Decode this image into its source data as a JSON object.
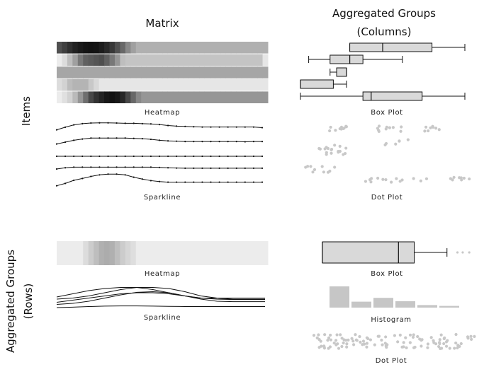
{
  "titles": {
    "matrix": "Matrix",
    "aggregated_columns_line1": "Aggregated Groups",
    "aggregated_columns_line2": "(Columns)",
    "items": "Items",
    "aggregated_rows_line1": "Aggregated Groups",
    "aggregated_rows_line2": "(Rows)"
  },
  "labels": {
    "heatmap": "Heatmap",
    "sparkline": "Sparkline",
    "box_plot": "Box Plot",
    "dot_plot": "Dot Plot",
    "histogram": "Histogram"
  },
  "colors": {
    "dot": "#c8c8c8",
    "bar": "#c6c6c6",
    "box_fill": "#d9d9d9",
    "line": "#111111"
  },
  "heatmap_rows": [
    [
      80,
      64,
      48,
      34,
      26,
      20,
      18,
      20,
      28,
      40,
      56,
      80,
      104,
      136,
      160,
      176,
      176,
      176,
      176,
      176,
      176,
      176,
      176,
      176,
      176,
      176,
      176,
      176,
      176,
      176,
      176,
      176,
      176,
      176,
      176,
      176,
      176,
      176,
      176,
      176
    ],
    [
      236,
      220,
      190,
      160,
      120,
      96,
      90,
      84,
      78,
      96,
      120,
      150,
      190,
      196,
      196,
      196,
      196,
      196,
      196,
      196,
      196,
      196,
      196,
      196,
      196,
      196,
      196,
      196,
      196,
      196,
      196,
      196,
      196,
      196,
      196,
      196,
      196,
      196,
      196,
      230
    ],
    [
      166,
      166,
      166,
      166,
      166,
      166,
      166,
      166,
      166,
      166,
      166,
      166,
      166,
      166,
      166,
      166,
      166,
      166,
      166,
      166,
      166,
      166,
      166,
      166,
      166,
      166,
      166,
      166,
      166,
      166,
      166,
      166,
      166,
      166,
      166,
      166,
      166,
      166,
      166,
      166
    ],
    [
      220,
      210,
      188,
      180,
      180,
      180,
      200,
      216,
      230,
      230,
      230,
      230,
      230,
      230,
      230,
      230,
      230,
      230,
      230,
      230,
      230,
      230,
      230,
      230,
      230,
      230,
      230,
      230,
      230,
      230,
      230,
      230,
      230,
      230,
      230,
      230,
      230,
      230,
      230,
      230
    ],
    [
      236,
      224,
      210,
      186,
      150,
      110,
      72,
      50,
      36,
      24,
      18,
      24,
      40,
      72,
      104,
      136,
      150,
      150,
      150,
      150,
      150,
      150,
      150,
      150,
      150,
      150,
      150,
      150,
      150,
      150,
      150,
      150,
      150,
      150,
      150,
      150,
      150,
      150,
      150,
      150
    ]
  ],
  "agg_heatmap_row": [
    236,
    236,
    236,
    236,
    236,
    220,
    204,
    190,
    176,
    172,
    176,
    190,
    204,
    214,
    222,
    236,
    236,
    236,
    236,
    236,
    236,
    236,
    236,
    236,
    236,
    236,
    236,
    236,
    236,
    236,
    236,
    236,
    236,
    236,
    236,
    236,
    236,
    236,
    236,
    236
  ],
  "item_sparklines": [
    [
      0.62,
      0.45,
      0.3,
      0.22,
      0.18,
      0.17,
      0.17,
      0.18,
      0.2,
      0.2,
      0.22,
      0.24,
      0.28,
      0.34,
      0.38,
      0.4,
      0.42,
      0.44,
      0.44,
      0.44,
      0.44,
      0.44,
      0.44,
      0.44,
      0.48
    ],
    [
      0.62,
      0.5,
      0.38,
      0.3,
      0.24,
      0.24,
      0.24,
      0.24,
      0.24,
      0.26,
      0.28,
      0.32,
      0.38,
      0.42,
      0.44,
      0.46,
      0.46,
      0.46,
      0.46,
      0.46,
      0.46,
      0.46,
      0.48,
      0.46,
      0.46
    ],
    [
      0.5,
      0.5,
      0.5,
      0.5,
      0.5,
      0.5,
      0.5,
      0.5,
      0.5,
      0.5,
      0.5,
      0.5,
      0.5,
      0.5,
      0.5,
      0.5,
      0.5,
      0.5,
      0.5,
      0.5,
      0.5,
      0.5,
      0.5,
      0.5,
      0.5
    ],
    [
      0.5,
      0.42,
      0.38,
      0.38,
      0.38,
      0.38,
      0.38,
      0.38,
      0.38,
      0.38,
      0.38,
      0.38,
      0.4,
      0.42,
      0.44,
      0.45,
      0.45,
      0.45,
      0.45,
      0.45,
      0.45,
      0.45,
      0.45,
      0.45,
      0.45
    ],
    [
      0.85,
      0.7,
      0.5,
      0.38,
      0.25,
      0.15,
      0.1,
      0.1,
      0.15,
      0.3,
      0.42,
      0.52,
      0.58,
      0.62,
      0.62,
      0.62,
      0.62,
      0.62,
      0.62,
      0.62,
      0.62,
      0.62,
      0.62,
      0.62,
      0.62
    ]
  ],
  "agg_sparklines": [
    [
      0.6,
      0.55,
      0.45,
      0.3,
      0.15,
      0.05,
      0.05,
      0.1,
      0.25,
      0.45,
      0.55,
      0.6,
      0.6,
      0.6
    ],
    [
      0.5,
      0.35,
      0.2,
      0.1,
      0.05,
      0.05,
      0.15,
      0.3,
      0.45,
      0.55,
      0.55,
      0.55,
      0.55,
      0.55
    ],
    [
      0.75,
      0.65,
      0.55,
      0.45,
      0.35,
      0.3,
      0.3,
      0.35,
      0.45,
      0.55,
      0.6,
      0.62,
      0.62,
      0.62
    ],
    [
      0.85,
      0.8,
      0.7,
      0.55,
      0.4,
      0.28,
      0.25,
      0.3,
      0.45,
      0.6,
      0.7,
      0.72,
      0.72,
      0.72
    ],
    [
      1.0,
      0.98,
      0.95,
      0.93,
      0.92,
      0.92,
      0.93,
      0.94,
      0.95,
      0.95,
      0.95,
      0.95,
      0.95,
      0.95
    ]
  ],
  "item_boxplots": [
    {
      "wmin": 0.3,
      "q1": 0.3,
      "med": 0.5,
      "q3": 0.8,
      "wmax": 1.0
    },
    {
      "wmin": 0.05,
      "q1": 0.18,
      "med": 0.3,
      "q3": 0.38,
      "wmax": 0.62
    },
    {
      "wmin": 0.18,
      "q1": 0.22,
      "med": 0.28,
      "q3": 0.28,
      "wmax": 0.28
    },
    {
      "wmin": 0.0,
      "q1": 0.0,
      "med": 0.0,
      "q3": 0.2,
      "wmax": 0.28
    },
    {
      "wmin": 0.0,
      "q1": 0.38,
      "med": 0.43,
      "q3": 0.74,
      "wmax": 1.0
    }
  ],
  "agg_boxplot": {
    "wmin": 0.0,
    "q1": 0.0,
    "med": 0.58,
    "q3": 0.7,
    "wmax": 0.95,
    "outliers": [
      1.03,
      1.07,
      1.12
    ]
  },
  "histogram_bins": [
    1.0,
    0.28,
    0.46,
    0.3,
    0.12,
    0.08
  ]
}
